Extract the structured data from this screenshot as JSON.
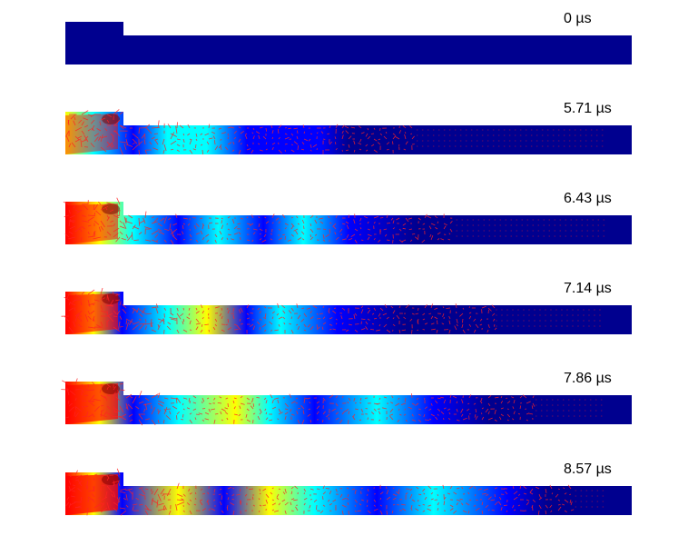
{
  "figure": {
    "panels": [
      {
        "time_label": "0 µs",
        "state": "initial"
      },
      {
        "time_label": "5.71 µs",
        "state": "wave"
      },
      {
        "time_label": "6.43 µs",
        "state": "wave"
      },
      {
        "time_label": "7.14 µs",
        "state": "wave"
      },
      {
        "time_label": "7.86 µs",
        "state": "wave"
      },
      {
        "time_label": "8.57 µs",
        "state": "wave"
      }
    ],
    "colormap": [
      "#00008f",
      "#0000ff",
      "#00ffff",
      "#ffff00",
      "#ff0000",
      "#800000"
    ],
    "arrow_color": "#ff2222"
  }
}
